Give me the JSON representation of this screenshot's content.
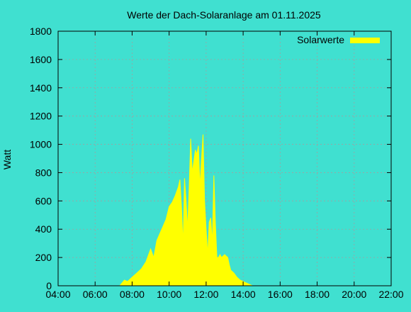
{
  "chart_data": {
    "type": "area",
    "title": "Werte der Dach-Solaranlage am 01.11.2025",
    "xlabel": "",
    "ylabel": "Watt",
    "x_unit": "time of day (HH:MM)",
    "xlim": [
      "04:00",
      "22:00"
    ],
    "ylim": [
      0,
      1800
    ],
    "x_ticks": [
      "04:00",
      "06:00",
      "08:00",
      "10:00",
      "12:00",
      "14:00",
      "16:00",
      "18:00",
      "20:00",
      "22:00"
    ],
    "y_ticks": [
      0,
      200,
      400,
      600,
      800,
      1000,
      1200,
      1400,
      1600,
      1800
    ],
    "grid": true,
    "legend_position": "top-right",
    "colors": {
      "background": "#40e0d0",
      "series": "#ffff00",
      "grid": "#a0a0a0",
      "axis": "#000000"
    },
    "series": [
      {
        "name": "Solarwerte",
        "x": [
          "07:20",
          "07:35",
          "07:45",
          "08:00",
          "08:15",
          "08:30",
          "08:45",
          "09:00",
          "09:10",
          "09:20",
          "09:30",
          "09:40",
          "09:50",
          "10:00",
          "10:10",
          "10:20",
          "10:30",
          "10:35",
          "10:40",
          "10:45",
          "10:50",
          "10:55",
          "11:00",
          "11:05",
          "11:10",
          "11:15",
          "11:20",
          "11:25",
          "11:30",
          "11:35",
          "11:40",
          "11:45",
          "11:50",
          "11:55",
          "12:00",
          "12:05",
          "12:10",
          "12:15",
          "12:20",
          "12:25",
          "12:30",
          "12:35",
          "12:40",
          "12:45",
          "12:50",
          "12:55",
          "13:00",
          "13:05",
          "13:10",
          "13:15",
          "13:20",
          "13:30",
          "13:40",
          "13:50",
          "14:00",
          "14:10",
          "14:20",
          "14:30",
          "14:40",
          "14:50",
          "15:00",
          "15:10",
          "15:20"
        ],
        "values": [
          0,
          40,
          30,
          60,
          90,
          120,
          170,
          260,
          200,
          320,
          370,
          420,
          470,
          560,
          590,
          640,
          700,
          750,
          560,
          290,
          760,
          600,
          400,
          700,
          1040,
          800,
          880,
          960,
          930,
          990,
          700,
          900,
          1070,
          600,
          400,
          220,
          450,
          480,
          300,
          780,
          450,
          200,
          200,
          220,
          200,
          210,
          220,
          210,
          200,
          150,
          110,
          90,
          60,
          40,
          30,
          20,
          10,
          0,
          0,
          0,
          0,
          0,
          0
        ]
      }
    ]
  }
}
